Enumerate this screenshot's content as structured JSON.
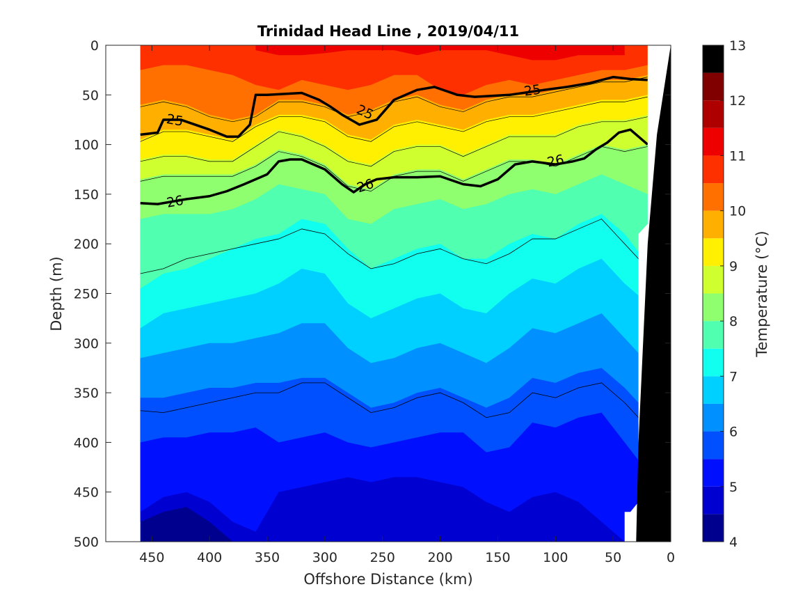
{
  "chart_data": {
    "type": "heatmap",
    "subtype": "filled-contour section",
    "title": "Trinidad Head Line , 2019/04/11",
    "xlabel": "Offshore Distance (km)",
    "ylabel": "Depth (m)",
    "xlim": [
      490,
      0
    ],
    "x_reversed": true,
    "ylim": [
      0,
      500
    ],
    "y_reversed": true,
    "xticks": [
      450,
      400,
      350,
      300,
      250,
      200,
      150,
      100,
      50,
      0
    ],
    "yticks": [
      0,
      50,
      100,
      150,
      200,
      250,
      300,
      350,
      400,
      450,
      500
    ],
    "x_data_range": [
      460,
      20
    ],
    "colorbar": {
      "label": "Temperature (°C)",
      "ticks": [
        4,
        5,
        6,
        7,
        8,
        9,
        10,
        11,
        12,
        13
      ],
      "levels": [
        4,
        4.5,
        5,
        5.5,
        6,
        6.5,
        7,
        7.5,
        8,
        8.5,
        9,
        9.5,
        10,
        10.5,
        11,
        11.5,
        12,
        12.5,
        13
      ],
      "colors": [
        "#00008f",
        "#0000d0",
        "#0010ff",
        "#0050ff",
        "#0090ff",
        "#00d0ff",
        "#10ffef",
        "#50ffaf",
        "#90ff6f",
        "#d0ff2f",
        "#ffef00",
        "#ffaf00",
        "#ff7000",
        "#ff3000",
        "#ef0000",
        "#af0000",
        "#800000"
      ]
    },
    "isotherm_depths": {
      "x": [
        460,
        440,
        420,
        400,
        380,
        360,
        340,
        320,
        300,
        280,
        260,
        240,
        220,
        200,
        180,
        160,
        140,
        120,
        100,
        80,
        60,
        40,
        20
      ],
      "t12": [
        null,
        null,
        null,
        null,
        null,
        5,
        10,
        10,
        8,
        5,
        5,
        5,
        10,
        5,
        5,
        5,
        10,
        15,
        15,
        10,
        10,
        10,
        null
      ],
      "t11": [
        25,
        20,
        20,
        25,
        30,
        40,
        45,
        35,
        40,
        45,
        40,
        30,
        30,
        45,
        50,
        40,
        35,
        40,
        35,
        30,
        25,
        25,
        20
      ],
      "t10": [
        60,
        55,
        60,
        70,
        75,
        70,
        55,
        55,
        60,
        70,
        65,
        55,
        50,
        60,
        65,
        55,
        50,
        50,
        45,
        40,
        35,
        35,
        30
      ],
      "t9_5": [
        95,
        85,
        85,
        90,
        95,
        80,
        70,
        70,
        75,
        90,
        95,
        80,
        75,
        80,
        85,
        75,
        70,
        70,
        65,
        60,
        55,
        55,
        50
      ],
      "t9": [
        115,
        110,
        110,
        115,
        115,
        100,
        85,
        90,
        100,
        115,
        120,
        105,
        100,
        100,
        110,
        100,
        90,
        90,
        90,
        80,
        75,
        75,
        70
      ],
      "t8_5": [
        135,
        130,
        130,
        130,
        130,
        120,
        105,
        110,
        120,
        140,
        145,
        130,
        125,
        125,
        135,
        125,
        115,
        115,
        120,
        110,
        100,
        105,
        100
      ],
      "t8": [
        175,
        170,
        170,
        170,
        165,
        155,
        140,
        145,
        150,
        175,
        180,
        165,
        160,
        155,
        165,
        160,
        150,
        145,
        150,
        140,
        130,
        140,
        150
      ],
      "t7_5": [
        245,
        230,
        225,
        215,
        205,
        195,
        190,
        175,
        180,
        205,
        225,
        215,
        205,
        200,
        215,
        215,
        200,
        190,
        195,
        180,
        170,
        190,
        220
      ],
      "t7": [
        285,
        270,
        265,
        260,
        255,
        250,
        240,
        225,
        230,
        260,
        275,
        265,
        255,
        250,
        265,
        270,
        250,
        235,
        240,
        225,
        215,
        240,
        260
      ],
      "t6_5": [
        315,
        310,
        305,
        300,
        300,
        295,
        290,
        280,
        280,
        305,
        320,
        315,
        305,
        300,
        310,
        320,
        305,
        285,
        290,
        280,
        270,
        295,
        320
      ],
      "t6": [
        355,
        355,
        350,
        345,
        345,
        340,
        340,
        335,
        335,
        350,
        365,
        360,
        350,
        345,
        355,
        365,
        355,
        335,
        340,
        330,
        325,
        345,
        370
      ],
      "t5_5": [
        400,
        395,
        395,
        390,
        390,
        385,
        400,
        395,
        390,
        400,
        405,
        400,
        395,
        390,
        390,
        410,
        405,
        380,
        385,
        375,
        370,
        400,
        430
      ],
      "t5": [
        470,
        455,
        450,
        460,
        480,
        490,
        450,
        445,
        440,
        435,
        440,
        435,
        435,
        440,
        445,
        460,
        470,
        455,
        450,
        460,
        480,
        500,
        500
      ],
      "t4_5": [
        480,
        470,
        465,
        480,
        500,
        500,
        500,
        500,
        500,
        500,
        500,
        500,
        500,
        500,
        500,
        500,
        500,
        500,
        500,
        500,
        500,
        500,
        500
      ]
    },
    "density_contours": [
      {
        "label": "25",
        "x": [
          460,
          445,
          440,
          425,
          400,
          385,
          375,
          365,
          360,
          350,
          320,
          305,
          295,
          285,
          270,
          255,
          240,
          220,
          205,
          185,
          170,
          140,
          110,
          90,
          70,
          50,
          35,
          20
        ],
        "depth": [
          90,
          88,
          75,
          75,
          85,
          92,
          92,
          80,
          50,
          50,
          48,
          55,
          62,
          70,
          80,
          75,
          55,
          45,
          42,
          50,
          52,
          50,
          45,
          42,
          38,
          32,
          34,
          35
        ]
      },
      {
        "label": "26",
        "x": [
          460,
          445,
          420,
          400,
          385,
          370,
          350,
          340,
          330,
          320,
          300,
          285,
          275,
          265,
          255,
          240,
          220,
          200,
          180,
          165,
          150,
          135,
          120,
          100,
          85,
          75,
          65,
          55,
          45,
          35,
          20
        ],
        "depth": [
          159,
          160,
          155,
          152,
          147,
          140,
          130,
          117,
          115,
          115,
          125,
          140,
          148,
          140,
          135,
          133,
          133,
          132,
          140,
          142,
          135,
          120,
          117,
          120,
          117,
          114,
          105,
          98,
          88,
          85,
          100
        ]
      }
    ],
    "thin_contours": [
      {
        "x": [
          460,
          440,
          420,
          400,
          380,
          360,
          340,
          320,
          300,
          280,
          260,
          240,
          220,
          200,
          180,
          160,
          140,
          120,
          100,
          80,
          60,
          40,
          20
        ],
        "depth": [
          230,
          225,
          215,
          210,
          205,
          200,
          195,
          185,
          190,
          210,
          225,
          220,
          210,
          205,
          215,
          220,
          210,
          195,
          195,
          185,
          175,
          200,
          225
        ]
      },
      {
        "x": [
          460,
          440,
          420,
          400,
          380,
          360,
          340,
          320,
          300,
          280,
          260,
          240,
          220,
          200,
          180,
          160,
          140,
          120,
          100,
          80,
          60,
          40,
          20
        ],
        "depth": [
          368,
          370,
          365,
          360,
          355,
          350,
          350,
          340,
          340,
          355,
          370,
          365,
          355,
          350,
          360,
          375,
          370,
          350,
          355,
          345,
          340,
          360,
          385
        ]
      }
    ],
    "bathymetry_black": {
      "x": [
        20,
        28,
        35,
        40,
        46,
        50,
        55,
        0
      ],
      "depth": [
        0,
        80,
        160,
        240,
        320,
        400,
        500,
        500
      ]
    }
  }
}
